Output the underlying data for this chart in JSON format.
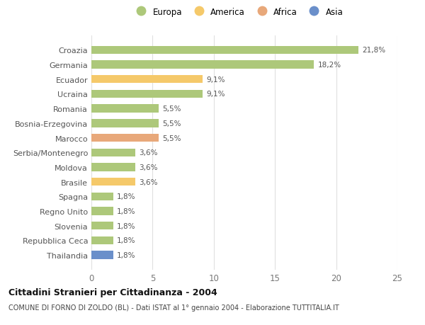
{
  "categories": [
    "Croazia",
    "Germania",
    "Ecuador",
    "Ucraina",
    "Romania",
    "Bosnia-Erzegovina",
    "Marocco",
    "Serbia/Montenegro",
    "Moldova",
    "Brasile",
    "Spagna",
    "Regno Unito",
    "Slovenia",
    "Repubblica Ceca",
    "Thailandia"
  ],
  "values": [
    21.8,
    18.2,
    9.1,
    9.1,
    5.5,
    5.5,
    5.5,
    3.6,
    3.6,
    3.6,
    1.8,
    1.8,
    1.8,
    1.8,
    1.8
  ],
  "labels": [
    "21,8%",
    "18,2%",
    "9,1%",
    "9,1%",
    "5,5%",
    "5,5%",
    "5,5%",
    "3,6%",
    "3,6%",
    "3,6%",
    "1,8%",
    "1,8%",
    "1,8%",
    "1,8%",
    "1,8%"
  ],
  "continent": [
    "Europa",
    "Europa",
    "America",
    "Europa",
    "Europa",
    "Europa",
    "Africa",
    "Europa",
    "Europa",
    "America",
    "Europa",
    "Europa",
    "Europa",
    "Europa",
    "Asia"
  ],
  "colors": {
    "Europa": "#adc87a",
    "America": "#f5c96a",
    "Africa": "#e8a87a",
    "Asia": "#6a8fca"
  },
  "legend_order": [
    "Europa",
    "America",
    "Africa",
    "Asia"
  ],
  "xlim": [
    0,
    25
  ],
  "xticks": [
    0,
    5,
    10,
    15,
    20,
    25
  ],
  "title": "Cittadini Stranieri per Cittadinanza - 2004",
  "subtitle": "COMUNE DI FORNO DI ZOLDO (BL) - Dati ISTAT al 1° gennaio 2004 - Elaborazione TUTTITALIA.IT",
  "bg_color": "#ffffff",
  "grid_color": "#e0e0e0",
  "bar_height": 0.55
}
